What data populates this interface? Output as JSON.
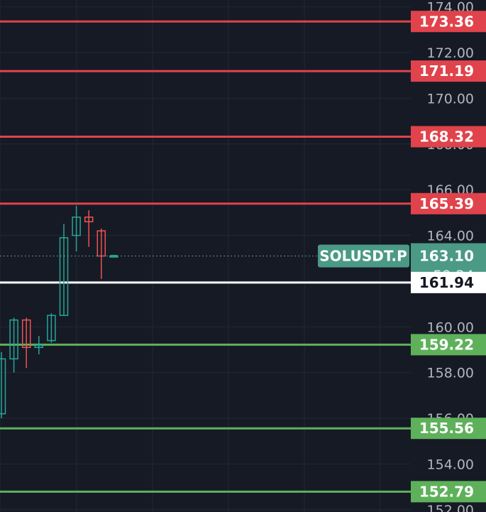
{
  "chart_data": {
    "type": "candlestick",
    "symbol": "SOLUSDT.P",
    "last_price": "163.10",
    "countdown": "59:24",
    "y_ticks": [
      "174.00",
      "172.00",
      "170.00",
      "168.00",
      "166.00",
      "164.00",
      "162.00",
      "160.00",
      "158.00",
      "156.00",
      "154.00",
      "152.00"
    ],
    "y_tick_values": [
      174,
      172,
      170,
      168,
      166,
      164,
      162,
      160,
      158,
      156,
      154,
      152
    ],
    "horizontal_lines": [
      {
        "label": "173.36",
        "value": 173.36,
        "kind": "resistance"
      },
      {
        "label": "171.19",
        "value": 171.19,
        "kind": "resistance"
      },
      {
        "label": "168.32",
        "value": 168.32,
        "kind": "resistance"
      },
      {
        "label": "165.39",
        "value": 165.39,
        "kind": "resistance"
      },
      {
        "label": "161.94",
        "value": 161.94,
        "kind": "marker"
      },
      {
        "label": "159.22",
        "value": 159.22,
        "kind": "support"
      },
      {
        "label": "155.56",
        "value": 155.56,
        "kind": "support"
      },
      {
        "label": "152.79",
        "value": 152.79,
        "kind": "support"
      }
    ],
    "candles": [
      {
        "o": 156.2,
        "h": 158.9,
        "l": 156.0,
        "c": 158.6
      },
      {
        "o": 158.6,
        "h": 160.4,
        "l": 158.0,
        "c": 160.3
      },
      {
        "o": 160.3,
        "h": 160.4,
        "l": 158.2,
        "c": 159.1
      },
      {
        "o": 159.1,
        "h": 159.6,
        "l": 158.8,
        "c": 159.2
      },
      {
        "o": 159.4,
        "h": 160.6,
        "l": 159.3,
        "c": 160.5
      },
      {
        "o": 160.5,
        "h": 164.5,
        "l": 160.5,
        "c": 163.9
      },
      {
        "o": 164.0,
        "h": 165.3,
        "l": 163.3,
        "c": 164.8
      },
      {
        "o": 164.8,
        "h": 165.1,
        "l": 163.5,
        "c": 164.6
      },
      {
        "o": 164.2,
        "h": 164.3,
        "l": 162.1,
        "c": 163.1
      },
      {
        "o": 163.1,
        "h": 163.15,
        "l": 163.05,
        "c": 163.1
      }
    ],
    "y_range": [
      151.9,
      174.3
    ],
    "colors": {
      "background": "#161a25",
      "grid": "#242835",
      "up": "#26a69a",
      "down": "#ef5350",
      "resistance": "#e0434b",
      "support": "#5eb15a",
      "marker": "#ffffff",
      "current": "#4a9a85",
      "tick_text": "#b2b5be"
    }
  }
}
